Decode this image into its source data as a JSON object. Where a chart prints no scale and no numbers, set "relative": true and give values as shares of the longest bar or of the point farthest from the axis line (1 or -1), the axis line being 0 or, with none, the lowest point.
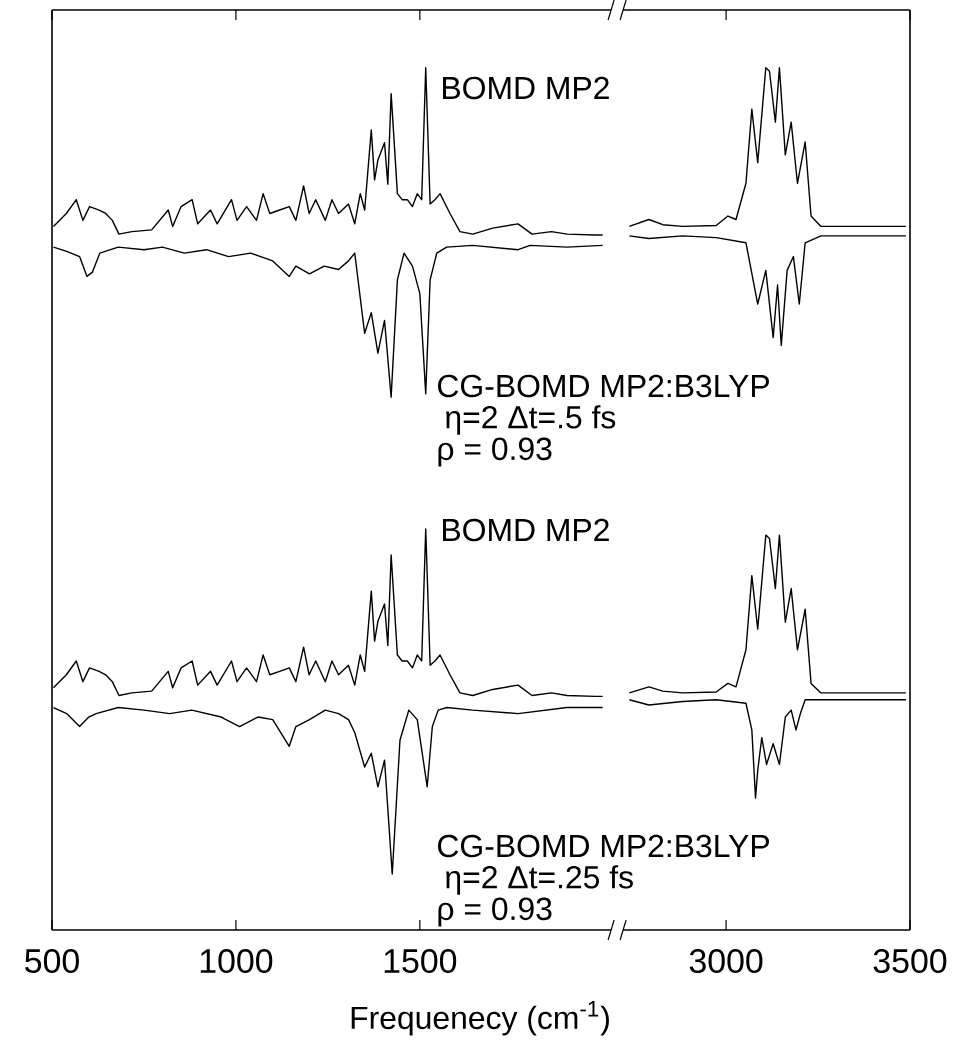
{
  "chart_data": [
    {
      "type": "line",
      "relative": true,
      "xlabel": "Frequenecy (cm$^{-1}$)",
      "xlim": [
        500,
        2020
      ],
      "xticks": [
        500,
        1000,
        1500
      ],
      "annotations": [
        "BOMD MP2",
        "CG-BOMD MP2:B3LYP",
        "η=2 Δt=.5 fs",
        "ρ = 0.93",
        "BOMD MP2",
        "CG-BOMD MP2:B3LYP",
        "η=2 Δt=.25 fs",
        "ρ = 0.93"
      ],
      "series": [
        {
          "color": "#000000",
          "x": [
            504,
            539,
            566,
            584,
            602,
            628,
            646,
            664,
            682,
            717,
            771,
            816,
            828,
            851,
            881,
            896,
            931,
            949,
            988,
            1003,
            1029,
            1056,
            1074,
            1092,
            1119,
            1145,
            1163,
            1184,
            1199,
            1217,
            1243,
            1261,
            1279,
            1306,
            1323,
            1338,
            1350,
            1368,
            1377,
            1386,
            1404,
            1413,
            1422,
            1439,
            1452,
            1466,
            1480,
            1493,
            1505,
            1516,
            1528,
            1541,
            1555,
            1582,
            1609,
            1644,
            1698,
            1767,
            1805,
            1858,
            1900,
            1976,
            1997
          ],
          "values": [
            0.816,
            0.831,
            0.847,
            0.823,
            0.839,
            0.835,
            0.831,
            0.823,
            0.807,
            0.81,
            0.812,
            0.835,
            0.816,
            0.839,
            0.847,
            0.819,
            0.835,
            0.819,
            0.847,
            0.823,
            0.839,
            0.823,
            0.854,
            0.831,
            0.835,
            0.839,
            0.823,
            0.863,
            0.831,
            0.847,
            0.823,
            0.847,
            0.831,
            0.842,
            0.819,
            0.854,
            0.835,
            0.928,
            0.87,
            0.893,
            0.913,
            0.865,
            0.97,
            0.854,
            0.847,
            0.847,
            0.839,
            0.854,
            0.847,
            1.0,
            0.842,
            0.847,
            0.854,
            0.831,
            0.81,
            0.807,
            0.814,
            0.819,
            0.807,
            0.81,
            0.807,
            0.806,
            0.806
          ]
        },
        {
          "color": "#000000",
          "x": [
            504,
            540,
            575,
            595,
            610,
            630,
            680,
            750,
            800,
            860,
            920,
            980,
            1040,
            1100,
            1145,
            1163,
            1200,
            1240,
            1279,
            1306,
            1323,
            1350,
            1368,
            1386,
            1404,
            1422,
            1439,
            1457,
            1480,
            1500,
            1516,
            1528,
            1546,
            1573,
            1644,
            1767,
            1800,
            1900,
            1997
          ],
          "values": [
            0.792,
            0.787,
            0.781,
            0.758,
            0.763,
            0.785,
            0.792,
            0.789,
            0.792,
            0.785,
            0.789,
            0.781,
            0.785,
            0.776,
            0.758,
            0.77,
            0.761,
            0.77,
            0.766,
            0.776,
            0.785,
            0.692,
            0.716,
            0.669,
            0.707,
            0.618,
            0.754,
            0.785,
            0.77,
            0.738,
            0.622,
            0.754,
            0.785,
            0.792,
            0.794,
            0.789,
            0.794,
            0.792,
            0.794
          ]
        },
        {
          "color": "#000000",
          "x": [
            504,
            539,
            566,
            584,
            602,
            628,
            646,
            664,
            682,
            717,
            771,
            816,
            828,
            851,
            881,
            896,
            931,
            949,
            988,
            1003,
            1029,
            1056,
            1074,
            1092,
            1119,
            1145,
            1163,
            1184,
            1199,
            1217,
            1243,
            1261,
            1279,
            1306,
            1323,
            1338,
            1350,
            1368,
            1377,
            1386,
            1404,
            1413,
            1422,
            1439,
            1452,
            1466,
            1480,
            1493,
            1505,
            1516,
            1528,
            1541,
            1555,
            1582,
            1609,
            1644,
            1698,
            1767,
            1805,
            1858,
            1900,
            1976,
            1997
          ],
          "values": [
            0.281,
            0.296,
            0.312,
            0.288,
            0.304,
            0.3,
            0.296,
            0.288,
            0.272,
            0.275,
            0.277,
            0.3,
            0.281,
            0.304,
            0.312,
            0.284,
            0.3,
            0.284,
            0.312,
            0.288,
            0.304,
            0.288,
            0.319,
            0.296,
            0.3,
            0.304,
            0.288,
            0.328,
            0.296,
            0.312,
            0.288,
            0.312,
            0.296,
            0.307,
            0.284,
            0.319,
            0.3,
            0.393,
            0.335,
            0.358,
            0.378,
            0.33,
            0.435,
            0.319,
            0.312,
            0.312,
            0.304,
            0.319,
            0.312,
            0.465,
            0.307,
            0.312,
            0.319,
            0.296,
            0.275,
            0.272,
            0.279,
            0.284,
            0.272,
            0.275,
            0.272,
            0.271,
            0.271
          ]
        },
        {
          "color": "#000000",
          "x": [
            504,
            540,
            575,
            600,
            620,
            680,
            750,
            820,
            880,
            960,
            1010,
            1060,
            1100,
            1145,
            1163,
            1200,
            1243,
            1279,
            1306,
            1323,
            1350,
            1368,
            1386,
            1404,
            1425,
            1446,
            1470,
            1493,
            1520,
            1534,
            1550,
            1573,
            1644,
            1767,
            1900,
            1997
          ],
          "values": [
            0.258,
            0.251,
            0.236,
            0.247,
            0.251,
            0.258,
            0.255,
            0.251,
            0.255,
            0.247,
            0.236,
            0.247,
            0.244,
            0.213,
            0.236,
            0.244,
            0.255,
            0.251,
            0.244,
            0.229,
            0.189,
            0.205,
            0.166,
            0.197,
            0.065,
            0.22,
            0.255,
            0.244,
            0.166,
            0.236,
            0.255,
            0.258,
            0.255,
            0.251,
            0.258,
            0.258
          ]
        }
      ]
    },
    {
      "type": "line",
      "relative": true,
      "xlim": [
        2720,
        3500
      ],
      "xticks": [
        3000,
        3500
      ],
      "series": [
        {
          "color": "#000000",
          "x": [
            2737,
            2790,
            2828,
            2882,
            2973,
            3005,
            3027,
            3054,
            3070,
            3086,
            3108,
            3118,
            3134,
            3145,
            3161,
            3177,
            3194,
            3215,
            3231,
            3258,
            3366,
            3489
          ],
          "values": [
            0.816,
            0.824,
            0.818,
            0.816,
            0.817,
            0.828,
            0.824,
            0.866,
            0.952,
            0.89,
            1.0,
            0.996,
            0.937,
            1.0,
            0.899,
            0.937,
            0.866,
            0.914,
            0.828,
            0.816,
            0.816,
            0.816
          ]
        },
        {
          "color": "#000000",
          "x": [
            2737,
            2790,
            2882,
            2973,
            3054,
            3086,
            3108,
            3128,
            3140,
            3150,
            3166,
            3183,
            3199,
            3215,
            3258,
            3489
          ],
          "values": [
            0.805,
            0.802,
            0.805,
            0.803,
            0.797,
            0.726,
            0.765,
            0.687,
            0.748,
            0.678,
            0.765,
            0.781,
            0.726,
            0.797,
            0.805,
            0.805
          ]
        },
        {
          "color": "#000000",
          "x": [
            2737,
            2790,
            2828,
            2882,
            2973,
            3005,
            3027,
            3054,
            3070,
            3086,
            3108,
            3118,
            3134,
            3145,
            3161,
            3177,
            3194,
            3215,
            3231,
            3258,
            3366,
            3489
          ],
          "values": [
            0.275,
            0.282,
            0.277,
            0.275,
            0.276,
            0.286,
            0.282,
            0.325,
            0.411,
            0.349,
            0.458,
            0.454,
            0.396,
            0.458,
            0.357,
            0.396,
            0.325,
            0.372,
            0.286,
            0.275,
            0.275,
            0.275
          ]
        },
        {
          "color": "#000000",
          "x": [
            2737,
            2790,
            2882,
            2973,
            3054,
            3070,
            3080,
            3086,
            3097,
            3110,
            3128,
            3145,
            3161,
            3177,
            3190,
            3202,
            3215,
            3258,
            3489
          ],
          "values": [
            0.267,
            0.261,
            0.265,
            0.267,
            0.263,
            0.232,
            0.153,
            0.185,
            0.223,
            0.192,
            0.216,
            0.192,
            0.247,
            0.255,
            0.232,
            0.251,
            0.267,
            0.267,
            0.267
          ]
        }
      ]
    }
  ]
}
